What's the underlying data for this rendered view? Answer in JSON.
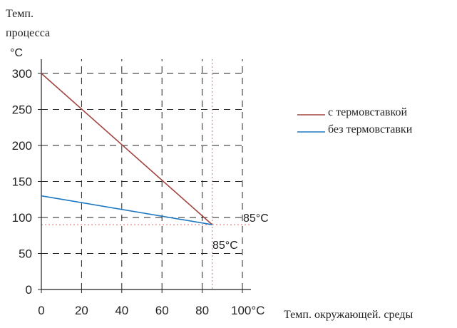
{
  "chart_data": {
    "type": "line",
    "ylabel_lines": [
      "Темп.",
      "процесса"
    ],
    "yunit": "°C",
    "xlabel": "Темп. окружающей. среды",
    "x_ticks": [
      "0",
      "20",
      "40",
      "60",
      "80",
      "100°C"
    ],
    "y_ticks": [
      "0",
      "50",
      "100",
      "150",
      "200",
      "250",
      "300"
    ],
    "xlim": [
      0,
      100
    ],
    "ylim": [
      0,
      300
    ],
    "grid": true,
    "legend_position": "right",
    "series": [
      {
        "name": "с термовставкой",
        "color": "#a0453f",
        "x": [
          0,
          85
        ],
        "y": [
          300,
          90
        ]
      },
      {
        "name": "без термовставки",
        "color": "#1f78c1",
        "x": [
          0,
          85
        ],
        "y": [
          130,
          90
        ]
      }
    ],
    "reference_lines": {
      "x": 85,
      "y": 90,
      "color": "#d9666f"
    },
    "annotations": [
      {
        "id": "h",
        "text": "85°C"
      },
      {
        "id": "v",
        "text": "85°C"
      }
    ]
  }
}
